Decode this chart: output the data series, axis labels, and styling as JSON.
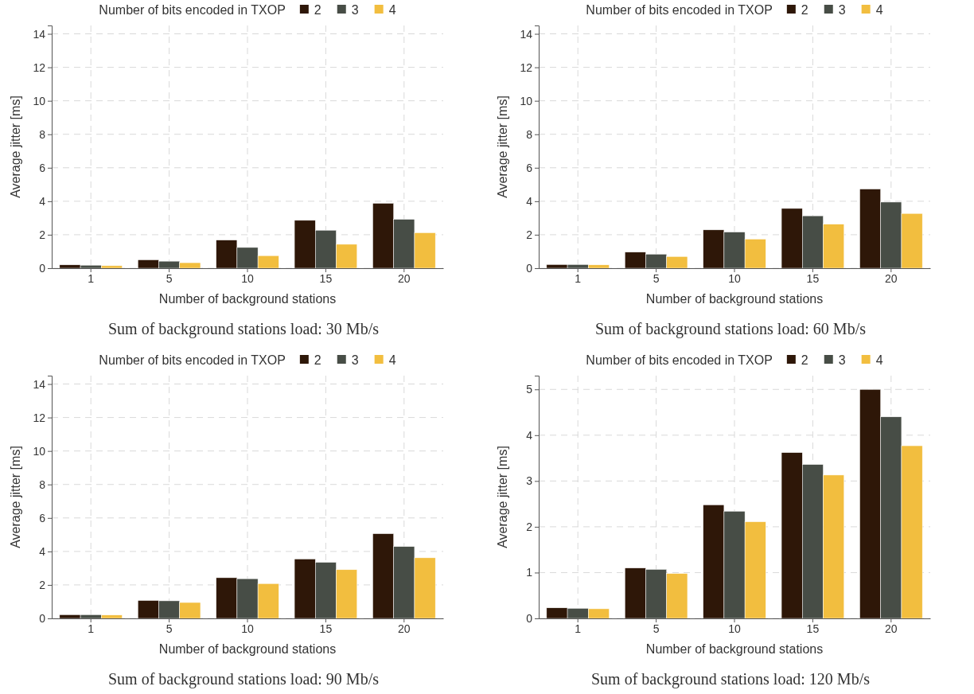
{
  "chart_data": [
    {
      "type": "bar",
      "legend_title": "Number of bits encoded in TXOP",
      "xlabel": "Number of background stations",
      "ylabel": "Average jitter [ms]",
      "categories": [
        "1",
        "5",
        "10",
        "15",
        "20"
      ],
      "ylim": [
        0,
        14.5
      ],
      "yticks": [
        0,
        2,
        4,
        6,
        8,
        10,
        12,
        14
      ],
      "grid": true,
      "legend": "top",
      "annotations": [
        "Sum of background stations load: 30 Mb/s"
      ],
      "series": [
        {
          "name": "2",
          "color": "#2e1708",
          "values": [
            0.2,
            0.5,
            1.68,
            2.86,
            3.88
          ]
        },
        {
          "name": "3",
          "color": "#474d46",
          "values": [
            0.18,
            0.42,
            1.24,
            2.27,
            2.92
          ]
        },
        {
          "name": "4",
          "color": "#f2be3f",
          "values": [
            0.15,
            0.33,
            0.75,
            1.43,
            2.12
          ]
        }
      ]
    },
    {
      "type": "bar",
      "legend_title": "Number of bits encoded in TXOP",
      "xlabel": "Number of background stations",
      "ylabel": "Average jitter [ms]",
      "categories": [
        "1",
        "5",
        "10",
        "15",
        "20"
      ],
      "ylim": [
        0,
        14.5
      ],
      "yticks": [
        0,
        2,
        4,
        6,
        8,
        10,
        12,
        14
      ],
      "grid": true,
      "legend": "top",
      "annotations": [
        "Sum of background stations load: 60 Mb/s"
      ],
      "series": [
        {
          "name": "2",
          "color": "#2e1708",
          "values": [
            0.22,
            0.96,
            2.29,
            3.57,
            4.73
          ]
        },
        {
          "name": "3",
          "color": "#474d46",
          "values": [
            0.22,
            0.84,
            2.16,
            3.13,
            3.95
          ]
        },
        {
          "name": "4",
          "color": "#f2be3f",
          "values": [
            0.2,
            0.7,
            1.74,
            2.63,
            3.27
          ]
        }
      ]
    },
    {
      "type": "bar",
      "legend_title": "Number of bits encoded in TXOP",
      "xlabel": "Number of background stations",
      "ylabel": "Average jitter [ms]",
      "categories": [
        "1",
        "5",
        "10",
        "15",
        "20"
      ],
      "ylim": [
        0,
        14.5
      ],
      "yticks": [
        0,
        2,
        4,
        6,
        8,
        10,
        12,
        14
      ],
      "grid": true,
      "legend": "top",
      "annotations": [
        "Sum of background stations load: 90 Mb/s"
      ],
      "series": [
        {
          "name": "2",
          "color": "#2e1708",
          "values": [
            0.22,
            1.07,
            2.43,
            3.55,
            5.06
          ]
        },
        {
          "name": "3",
          "color": "#474d46",
          "values": [
            0.22,
            1.05,
            2.37,
            3.35,
            4.29
          ]
        },
        {
          "name": "4",
          "color": "#f2be3f",
          "values": [
            0.2,
            0.95,
            2.08,
            2.91,
            3.62
          ]
        }
      ]
    },
    {
      "type": "bar",
      "legend_title": "Number of bits encoded in TXOP",
      "xlabel": "Number of background stations",
      "ylabel": "Average jitter [ms]",
      "categories": [
        "1",
        "5",
        "10",
        "15",
        "20"
      ],
      "ylim": [
        0,
        5.3
      ],
      "yticks": [
        0,
        1,
        2,
        3,
        4,
        5
      ],
      "grid": true,
      "legend": "top",
      "annotations": [
        "Sum of background stations load: 120 Mb/s"
      ],
      "series": [
        {
          "name": "2",
          "color": "#2e1708",
          "values": [
            0.23,
            1.1,
            2.48,
            3.62,
            5.0
          ]
        },
        {
          "name": "3",
          "color": "#474d46",
          "values": [
            0.22,
            1.07,
            2.34,
            3.36,
            4.4
          ]
        },
        {
          "name": "4",
          "color": "#f2be3f",
          "values": [
            0.21,
            0.98,
            2.11,
            3.13,
            3.77
          ]
        }
      ]
    }
  ]
}
